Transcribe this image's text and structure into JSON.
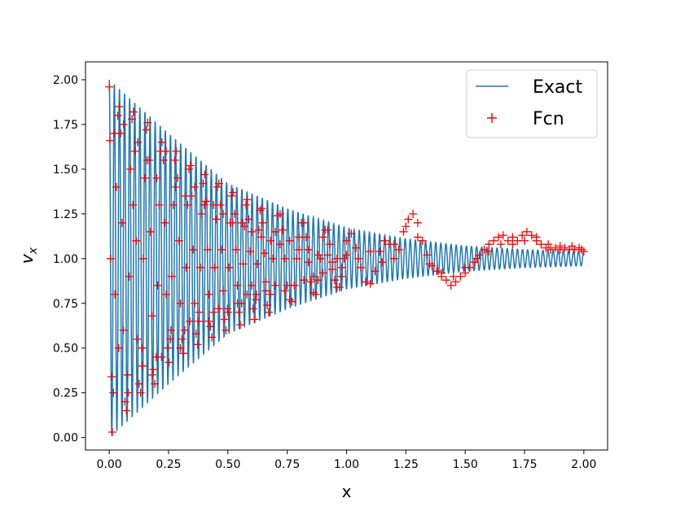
{
  "chart_data": {
    "type": "line",
    "xlabel": "x",
    "ylabel_main": "v",
    "ylabel_sub": "x",
    "xlim": [
      -0.1,
      2.1
    ],
    "ylim": [
      -0.07,
      2.1
    ],
    "x_ticks": [
      0.0,
      0.25,
      0.5,
      0.75,
      1.0,
      1.25,
      1.5,
      1.75,
      2.0
    ],
    "x_tick_labels": [
      "0.00",
      "0.25",
      "0.50",
      "0.75",
      "1.00",
      "1.25",
      "1.50",
      "1.75",
      "2.00"
    ],
    "y_ticks": [
      0.0,
      0.25,
      0.5,
      0.75,
      1.0,
      1.25,
      1.5,
      1.75,
      2.0
    ],
    "y_tick_labels": [
      "0.00",
      "0.25",
      "0.50",
      "0.75",
      "1.00",
      "1.25",
      "1.50",
      "1.75",
      "2.00"
    ],
    "legend_position": "top-right",
    "series": [
      {
        "name": "Exact",
        "kind": "line",
        "color": "#1f77b4",
        "x_range": [
          0.0,
          2.0
        ],
        "oscillation_period": 0.0215,
        "envelope": [
          {
            "x": 0.0,
            "amp": 1.0
          },
          {
            "x": 0.25,
            "amp": 0.7
          },
          {
            "x": 0.5,
            "amp": 0.42
          },
          {
            "x": 0.75,
            "amp": 0.28
          },
          {
            "x": 1.0,
            "amp": 0.17
          },
          {
            "x": 1.25,
            "amp": 0.11
          },
          {
            "x": 1.5,
            "amp": 0.07
          },
          {
            "x": 1.75,
            "amp": 0.05
          },
          {
            "x": 2.0,
            "amp": 0.04
          }
        ]
      },
      {
        "name": "Fcn",
        "kind": "scatter",
        "marker": "+",
        "color": "#ff0000",
        "points": [
          [
            0.0,
            1.96
          ],
          [
            0.003,
            1.66
          ],
          [
            0.006,
            1.0
          ],
          [
            0.01,
            0.34
          ],
          [
            0.013,
            0.03
          ],
          [
            0.018,
            0.25
          ],
          [
            0.024,
            0.8
          ],
          [
            0.03,
            1.4
          ],
          [
            0.036,
            1.8
          ],
          [
            0.042,
            1.85
          ],
          [
            0.048,
            1.7
          ],
          [
            0.054,
            1.2
          ],
          [
            0.06,
            0.6
          ],
          [
            0.066,
            0.2
          ],
          [
            0.072,
            0.15
          ],
          [
            0.078,
            0.35
          ],
          [
            0.084,
            0.9
          ],
          [
            0.09,
            1.5
          ],
          [
            0.096,
            1.78
          ],
          [
            0.102,
            1.82
          ],
          [
            0.108,
            1.6
          ],
          [
            0.114,
            1.1
          ],
          [
            0.12,
            0.55
          ],
          [
            0.126,
            0.3
          ],
          [
            0.132,
            0.25
          ],
          [
            0.138,
            0.5
          ],
          [
            0.144,
            1.0
          ],
          [
            0.15,
            1.45
          ],
          [
            0.156,
            1.72
          ],
          [
            0.162,
            1.76
          ],
          [
            0.168,
            1.55
          ],
          [
            0.174,
            1.15
          ],
          [
            0.18,
            0.68
          ],
          [
            0.186,
            0.38
          ],
          [
            0.192,
            0.3
          ],
          [
            0.198,
            0.45
          ],
          [
            0.204,
            0.85
          ],
          [
            0.21,
            1.3
          ],
          [
            0.216,
            1.6
          ],
          [
            0.222,
            1.65
          ],
          [
            0.228,
            1.55
          ],
          [
            0.234,
            1.2
          ],
          [
            0.24,
            0.8
          ],
          [
            0.246,
            0.5
          ],
          [
            0.252,
            0.42
          ],
          [
            0.258,
            0.55
          ],
          [
            0.264,
            0.9
          ],
          [
            0.27,
            1.3
          ],
          [
            0.276,
            1.55
          ],
          [
            0.282,
            1.6
          ],
          [
            0.288,
            1.45
          ],
          [
            0.294,
            1.1
          ],
          [
            0.3,
            0.75
          ],
          [
            0.306,
            0.55
          ],
          [
            0.312,
            0.47
          ],
          [
            0.318,
            0.6
          ],
          [
            0.324,
            0.95
          ],
          [
            0.33,
            1.3
          ],
          [
            0.336,
            1.5
          ],
          [
            0.342,
            1.52
          ],
          [
            0.348,
            1.35
          ],
          [
            0.354,
            1.05
          ],
          [
            0.36,
            0.75
          ],
          [
            0.366,
            0.58
          ],
          [
            0.372,
            0.52
          ],
          [
            0.378,
            0.65
          ],
          [
            0.384,
            0.95
          ],
          [
            0.39,
            1.25
          ],
          [
            0.396,
            1.42
          ],
          [
            0.402,
            1.47
          ],
          [
            0.408,
            1.32
          ],
          [
            0.414,
            1.05
          ],
          [
            0.42,
            0.8
          ],
          [
            0.426,
            0.62
          ],
          [
            0.432,
            0.56
          ],
          [
            0.438,
            0.7
          ],
          [
            0.444,
            0.95
          ],
          [
            0.45,
            1.22
          ],
          [
            0.456,
            1.4
          ],
          [
            0.462,
            1.42
          ],
          [
            0.468,
            1.3
          ],
          [
            0.474,
            1.05
          ],
          [
            0.48,
            0.82
          ],
          [
            0.486,
            0.66
          ],
          [
            0.492,
            0.6
          ],
          [
            0.498,
            0.72
          ],
          [
            0.504,
            0.95
          ],
          [
            0.51,
            1.2
          ],
          [
            0.516,
            1.35
          ],
          [
            0.522,
            1.37
          ],
          [
            0.528,
            1.25
          ],
          [
            0.534,
            1.05
          ],
          [
            0.54,
            0.85
          ],
          [
            0.546,
            0.7
          ],
          [
            0.552,
            0.63
          ],
          [
            0.558,
            0.75
          ],
          [
            0.564,
            0.97
          ],
          [
            0.57,
            1.18
          ],
          [
            0.576,
            1.3
          ],
          [
            0.582,
            1.33
          ],
          [
            0.588,
            1.22
          ],
          [
            0.594,
            1.04
          ],
          [
            0.6,
            0.85
          ],
          [
            0.606,
            0.72
          ],
          [
            0.612,
            0.66
          ],
          [
            0.618,
            0.77
          ],
          [
            0.624,
            0.97
          ],
          [
            0.63,
            1.16
          ],
          [
            0.636,
            1.27
          ],
          [
            0.642,
            1.28
          ],
          [
            0.648,
            1.2
          ],
          [
            0.654,
            1.03
          ],
          [
            0.66,
            0.87
          ],
          [
            0.666,
            0.74
          ],
          [
            0.672,
            0.7
          ],
          [
            0.68,
            0.8
          ],
          [
            0.69,
            1.0
          ],
          [
            0.7,
            1.15
          ],
          [
            0.71,
            1.24
          ],
          [
            0.72,
            1.25
          ],
          [
            0.73,
            1.16
          ],
          [
            0.74,
            1.0
          ],
          [
            0.75,
            0.85
          ],
          [
            0.76,
            0.77
          ],
          [
            0.77,
            0.76
          ],
          [
            0.78,
            0.85
          ],
          [
            0.79,
            1.0
          ],
          [
            0.8,
            1.12
          ],
          [
            0.81,
            1.2
          ],
          [
            0.82,
            1.2
          ],
          [
            0.83,
            1.12
          ],
          [
            0.84,
            0.98
          ],
          [
            0.85,
            0.87
          ],
          [
            0.86,
            0.81
          ],
          [
            0.87,
            0.8
          ],
          [
            0.88,
            0.88
          ],
          [
            0.89,
            1.0
          ],
          [
            0.9,
            1.12
          ],
          [
            0.91,
            1.16
          ],
          [
            0.92,
            1.16
          ],
          [
            0.93,
            1.08
          ],
          [
            0.94,
            0.98
          ],
          [
            0.95,
            0.88
          ],
          [
            0.96,
            0.84
          ],
          [
            0.97,
            0.84
          ],
          [
            0.98,
            0.9
          ],
          [
            0.99,
            1.0
          ],
          [
            1.0,
            1.1
          ],
          [
            1.02,
            1.14
          ],
          [
            1.04,
            1.06
          ],
          [
            1.06,
            0.95
          ],
          [
            1.08,
            0.87
          ],
          [
            1.1,
            0.86
          ],
          [
            1.12,
            0.93
          ],
          [
            1.14,
            1.04
          ],
          [
            1.16,
            1.1
          ],
          [
            1.18,
            1.08
          ],
          [
            1.2,
            1.0
          ],
          [
            1.22,
            1.05
          ],
          [
            1.24,
            1.15
          ],
          [
            1.26,
            1.22
          ],
          [
            1.28,
            1.25
          ],
          [
            1.3,
            1.2
          ],
          [
            1.32,
            1.1
          ],
          [
            1.34,
            1.02
          ],
          [
            1.36,
            0.96
          ],
          [
            1.38,
            0.93
          ],
          [
            1.4,
            0.9
          ],
          [
            1.42,
            0.88
          ],
          [
            1.44,
            0.85
          ],
          [
            1.46,
            0.87
          ],
          [
            1.48,
            0.9
          ],
          [
            1.5,
            0.92
          ],
          [
            1.52,
            0.95
          ],
          [
            1.54,
            0.98
          ],
          [
            1.56,
            1.02
          ],
          [
            1.58,
            1.05
          ],
          [
            1.6,
            1.08
          ],
          [
            1.62,
            1.1
          ],
          [
            1.64,
            1.12
          ],
          [
            1.66,
            1.13
          ],
          [
            1.68,
            1.1
          ],
          [
            1.7,
            1.08
          ],
          [
            1.72,
            1.1
          ],
          [
            1.74,
            1.13
          ],
          [
            1.76,
            1.15
          ],
          [
            1.78,
            1.13
          ],
          [
            1.8,
            1.1
          ],
          [
            1.82,
            1.08
          ],
          [
            1.84,
            1.06
          ],
          [
            1.86,
            1.05
          ],
          [
            1.88,
            1.06
          ],
          [
            1.9,
            1.07
          ],
          [
            1.92,
            1.06
          ],
          [
            1.94,
            1.05
          ],
          [
            1.96,
            1.05
          ],
          [
            1.98,
            1.06
          ],
          [
            2.0,
            1.04
          ],
          [
            0.02,
            1.7
          ],
          [
            0.04,
            0.5
          ],
          [
            0.06,
            1.75
          ],
          [
            0.08,
            0.25
          ],
          [
            0.1,
            1.3
          ],
          [
            0.12,
            1.65
          ],
          [
            0.14,
            0.4
          ],
          [
            0.16,
            1.55
          ],
          [
            0.18,
            0.35
          ],
          [
            0.2,
            1.45
          ],
          [
            0.22,
            0.45
          ],
          [
            0.24,
            1.6
          ],
          [
            0.26,
            0.6
          ],
          [
            0.28,
            1.4
          ],
          [
            0.3,
            0.5
          ],
          [
            0.32,
            1.35
          ],
          [
            0.34,
            0.65
          ],
          [
            0.36,
            1.4
          ],
          [
            0.38,
            0.7
          ],
          [
            0.4,
            1.3
          ],
          [
            0.42,
            0.65
          ],
          [
            0.44,
            1.3
          ],
          [
            0.46,
            0.72
          ],
          [
            0.48,
            1.25
          ],
          [
            0.5,
            0.7
          ],
          [
            0.52,
            1.2
          ],
          [
            0.54,
            0.75
          ],
          [
            0.56,
            1.2
          ],
          [
            0.58,
            0.8
          ],
          [
            0.6,
            1.15
          ],
          [
            0.62,
            0.8
          ],
          [
            0.64,
            1.12
          ],
          [
            0.66,
            0.82
          ],
          [
            0.68,
            1.1
          ],
          [
            0.7,
            0.85
          ],
          [
            0.72,
            1.08
          ],
          [
            0.74,
            0.82
          ],
          [
            0.76,
            1.1
          ],
          [
            0.78,
            0.85
          ],
          [
            0.8,
            1.05
          ],
          [
            0.82,
            0.88
          ],
          [
            0.84,
            1.05
          ],
          [
            0.86,
            0.9
          ],
          [
            0.88,
            1.02
          ],
          [
            0.9,
            0.92
          ],
          [
            0.92,
            1.02
          ],
          [
            0.94,
            0.94
          ],
          [
            0.96,
            1.0
          ],
          [
            0.98,
            0.95
          ],
          [
            1.0,
            1.02
          ],
          [
            1.05,
            1.0
          ],
          [
            1.1,
            1.04
          ],
          [
            1.15,
            0.98
          ],
          [
            1.2,
            1.08
          ],
          [
            1.25,
            1.18
          ],
          [
            1.3,
            1.12
          ],
          [
            1.35,
            0.97
          ],
          [
            1.4,
            0.92
          ],
          [
            1.45,
            0.9
          ],
          [
            1.5,
            0.95
          ],
          [
            1.55,
            1.0
          ],
          [
            1.6,
            1.04
          ],
          [
            1.65,
            1.08
          ],
          [
            1.7,
            1.12
          ],
          [
            1.75,
            1.1
          ],
          [
            1.8,
            1.12
          ],
          [
            1.85,
            1.08
          ],
          [
            1.9,
            1.05
          ],
          [
            1.95,
            1.07
          ],
          [
            1.99,
            1.05
          ]
        ]
      }
    ]
  }
}
